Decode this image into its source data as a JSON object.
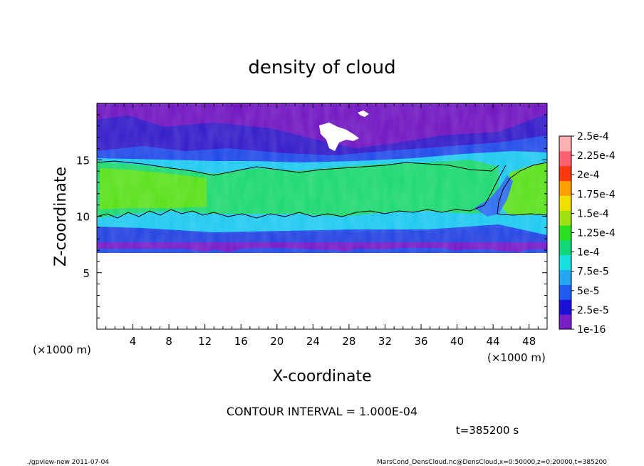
{
  "chart_data": {
    "type": "heatmap",
    "title": "density of cloud",
    "xlabel": "X-coordinate",
    "ylabel": "Z-coordinate",
    "x_unit": "(×1000 m)",
    "y_unit": "(×1000 m)",
    "xlim": [
      0,
      50
    ],
    "ylim": [
      0,
      20
    ],
    "x_ticks": [
      4,
      8,
      12,
      16,
      20,
      24,
      28,
      32,
      36,
      40,
      44,
      48
    ],
    "y_ticks": [
      5,
      10,
      15
    ],
    "colorbar": {
      "levels": [
        "1e-16",
        "2.5e-5",
        "5e-5",
        "7.5e-5",
        "1e-4",
        "1.25e-4",
        "1.5e-4",
        "1.75e-4",
        "2e-4",
        "2.25e-4",
        "2.5e-4"
      ],
      "colors": [
        "#7a1ec8",
        "#1a10d8",
        "#1e5cf0",
        "#22a8f0",
        "#16e0e0",
        "#10d878",
        "#28e020",
        "#a0e010",
        "#f0e000",
        "#ffa000",
        "#ff3810",
        "#ff6070",
        "#ffb0b0"
      ]
    },
    "contour_interval": "CONTOUR INTERVAL = 1.000E-04",
    "time": "t=385200 s"
  },
  "footer": {
    "left": "./gpview-new   2011-07-04",
    "right": "MarsCond_DensCloud.nc@DensCloud,x=0:50000,z=0:20000,t=385200"
  }
}
